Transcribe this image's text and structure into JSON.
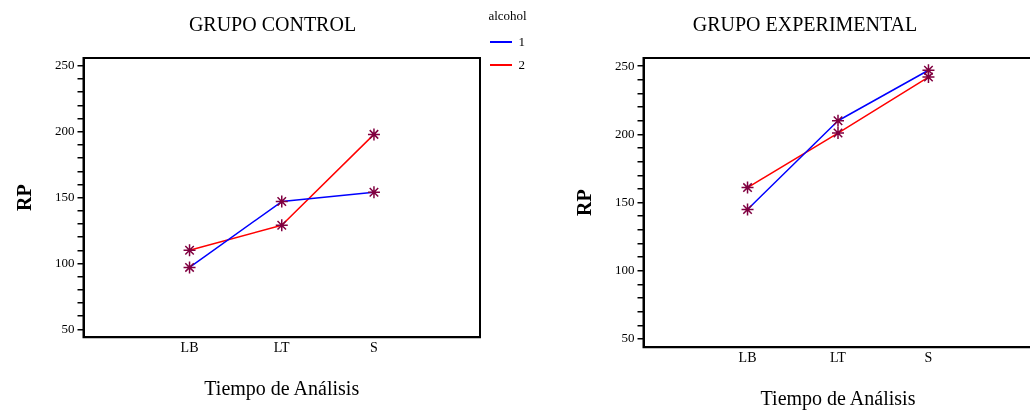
{
  "chart_data": [
    {
      "type": "line",
      "title": "GRUPO CONTROL",
      "xlabel": "Tiempo de Análisis",
      "ylabel": "RP",
      "legend_title": "alcohol",
      "categories": [
        "LB",
        "LT",
        "S"
      ],
      "series": [
        {
          "name": "1",
          "color": "#0000ff",
          "values": [
            97,
            147,
            154
          ]
        },
        {
          "name": "2",
          "color": "#ff0000",
          "values": [
            110,
            129,
            198
          ]
        }
      ],
      "ylim": [
        44,
        256
      ],
      "yticks": [
        50,
        {
          "value": 60,
          "label": null
        },
        {
          "value": 70,
          "label": null
        },
        {
          "value": 80,
          "label": null
        },
        {
          "value": 90,
          "label": null
        },
        100,
        {
          "value": 110,
          "label": null
        },
        {
          "value": 120,
          "label": null
        },
        {
          "value": 130,
          "label": null
        },
        {
          "value": 140,
          "label": null
        },
        150,
        {
          "value": 160,
          "label": null
        },
        {
          "value": 170,
          "label": null
        },
        {
          "value": 180,
          "label": null
        },
        {
          "value": 190,
          "label": null
        },
        200,
        {
          "value": 210,
          "label": null
        },
        {
          "value": 220,
          "label": null
        },
        {
          "value": 230,
          "label": null
        },
        {
          "value": 240,
          "label": null
        },
        250
      ],
      "grid": false,
      "legend": "right",
      "marker": "cross",
      "line_style": "solid"
    },
    {
      "type": "line",
      "title": "GRUPO EXPERIMENTAL",
      "xlabel": "Tiempo de Análisis",
      "ylabel": "RP",
      "categories": [
        "LB",
        "LT",
        "S"
      ],
      "series": [
        {
          "color": "#0000ff",
          "values": [
            145,
            210,
            247
          ]
        },
        {
          "color": "#ff0000",
          "values": [
            161,
            201,
            242
          ]
        }
      ],
      "ylim": [
        44,
        256
      ],
      "yticks": [
        50,
        {
          "value": 60,
          "label": null
        },
        {
          "value": 70,
          "label": null
        },
        {
          "value": 80,
          "label": null
        },
        {
          "value": 90,
          "label": null
        },
        100,
        {
          "value": 110,
          "label": null
        },
        {
          "value": 120,
          "label": null
        },
        {
          "value": 130,
          "label": null
        },
        {
          "value": 140,
          "label": null
        },
        150,
        {
          "value": 160,
          "label": null
        },
        {
          "value": 170,
          "label": null
        },
        {
          "value": 180,
          "label": null
        },
        {
          "value": 190,
          "label": null
        },
        200,
        {
          "value": 210,
          "label": null
        },
        {
          "value": 220,
          "label": null
        },
        {
          "value": 230,
          "label": null
        },
        {
          "value": 240,
          "label": null
        },
        250
      ],
      "grid": false,
      "legend": false,
      "marker": "cross",
      "line_style": "solid"
    }
  ]
}
